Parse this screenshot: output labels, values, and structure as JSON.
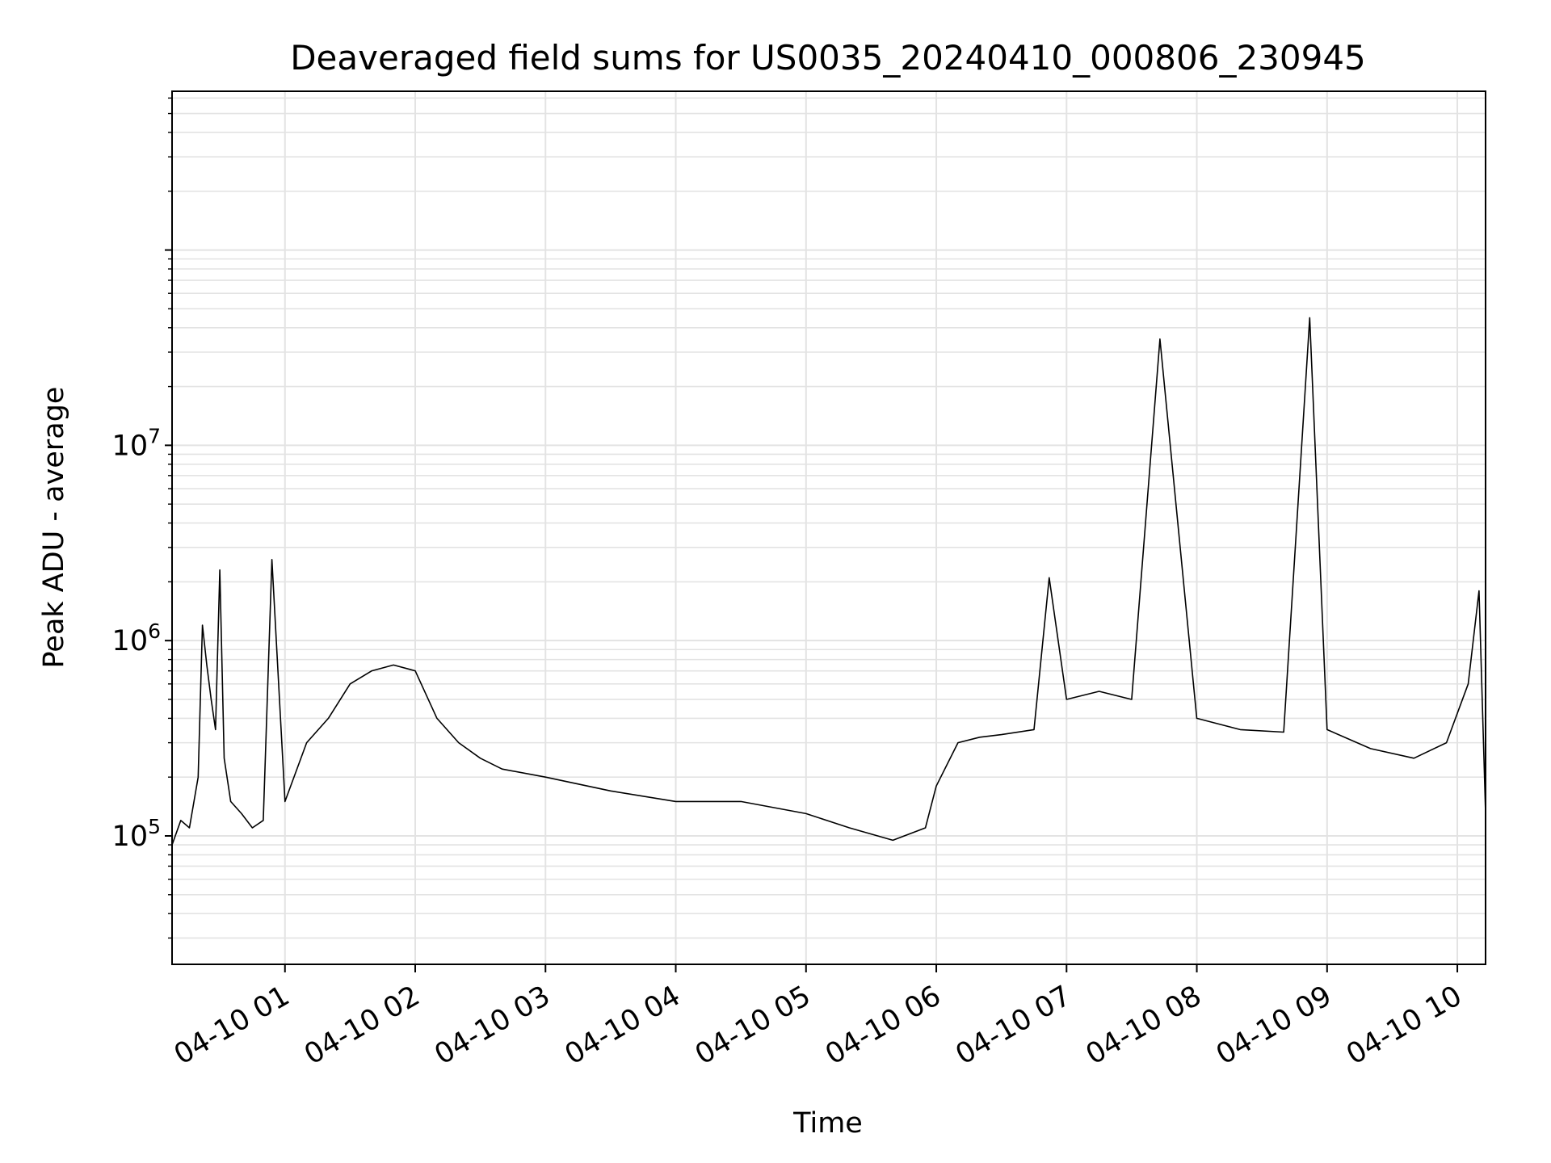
{
  "chart_data": {
    "type": "line",
    "title": "Deaveraged field sums for US0035_20240410_000806_230945",
    "xlabel": "Time",
    "ylabel": "Peak ADU - average",
    "x_scale": "time",
    "y_scale": "log",
    "xlim": [
      "2024-04-10 00:08",
      "2024-04-10 10:13"
    ],
    "ylim": [
      22000,
      650000000
    ],
    "grid": true,
    "legend": "none",
    "line_color": "#000000",
    "x_ticks": [
      {
        "t": "2024-04-10 01:00",
        "label": "04-10 01"
      },
      {
        "t": "2024-04-10 02:00",
        "label": "04-10 02"
      },
      {
        "t": "2024-04-10 03:00",
        "label": "04-10 03"
      },
      {
        "t": "2024-04-10 04:00",
        "label": "04-10 04"
      },
      {
        "t": "2024-04-10 05:00",
        "label": "04-10 05"
      },
      {
        "t": "2024-04-10 06:00",
        "label": "04-10 06"
      },
      {
        "t": "2024-04-10 07:00",
        "label": "04-10 07"
      },
      {
        "t": "2024-04-10 08:00",
        "label": "04-10 08"
      },
      {
        "t": "2024-04-10 09:00",
        "label": "04-10 09"
      },
      {
        "t": "2024-04-10 10:00",
        "label": "04-10 10"
      }
    ],
    "y_ticks": [
      {
        "value": 100000,
        "base": "10",
        "exp": "5"
      },
      {
        "value": 1000000,
        "base": "10",
        "exp": "6"
      },
      {
        "value": 10000000,
        "base": "10",
        "exp": "7"
      }
    ],
    "series": [
      {
        "x": [
          "2024-04-10 00:08",
          "2024-04-10 00:12",
          "2024-04-10 00:16",
          "2024-04-10 00:20",
          "2024-04-10 00:22",
          "2024-04-10 00:24",
          "2024-04-10 00:26",
          "2024-04-10 00:28",
          "2024-04-10 00:30",
          "2024-04-10 00:32",
          "2024-04-10 00:35",
          "2024-04-10 00:40",
          "2024-04-10 00:45",
          "2024-04-10 00:50",
          "2024-04-10 00:54",
          "2024-04-10 01:00",
          "2024-04-10 01:10",
          "2024-04-10 01:20",
          "2024-04-10 01:30",
          "2024-04-10 01:40",
          "2024-04-10 01:50",
          "2024-04-10 02:00",
          "2024-04-10 02:10",
          "2024-04-10 02:20",
          "2024-04-10 02:30",
          "2024-04-10 02:40",
          "2024-04-10 03:00",
          "2024-04-10 03:30",
          "2024-04-10 04:00",
          "2024-04-10 04:30",
          "2024-04-10 05:00",
          "2024-04-10 05:20",
          "2024-04-10 05:40",
          "2024-04-10 05:55",
          "2024-04-10 06:00",
          "2024-04-10 06:10",
          "2024-04-10 06:20",
          "2024-04-10 06:30",
          "2024-04-10 06:45",
          "2024-04-10 06:52",
          "2024-04-10 07:00",
          "2024-04-10 07:15",
          "2024-04-10 07:30",
          "2024-04-10 07:43",
          "2024-04-10 08:00",
          "2024-04-10 08:20",
          "2024-04-10 08:40",
          "2024-04-10 08:52",
          "2024-04-10 09:00",
          "2024-04-10 09:20",
          "2024-04-10 09:40",
          "2024-04-10 09:55",
          "2024-04-10 10:05",
          "2024-04-10 10:10",
          "2024-04-10 10:13"
        ],
        "y": [
          90000,
          120000,
          110000,
          200000,
          1200000,
          750000,
          500000,
          350000,
          2300000,
          250000,
          150000,
          130000,
          110000,
          120000,
          2600000,
          150000,
          300000,
          400000,
          600000,
          700000,
          750000,
          700000,
          400000,
          300000,
          250000,
          220000,
          200000,
          170000,
          150000,
          150000,
          130000,
          110000,
          95000,
          110000,
          180000,
          300000,
          320000,
          330000,
          350000,
          2100000,
          500000,
          550000,
          500000,
          35000000,
          400000,
          350000,
          340000,
          45000000,
          350000,
          280000,
          250000,
          300000,
          600000,
          1800000,
          130000
        ]
      }
    ]
  }
}
